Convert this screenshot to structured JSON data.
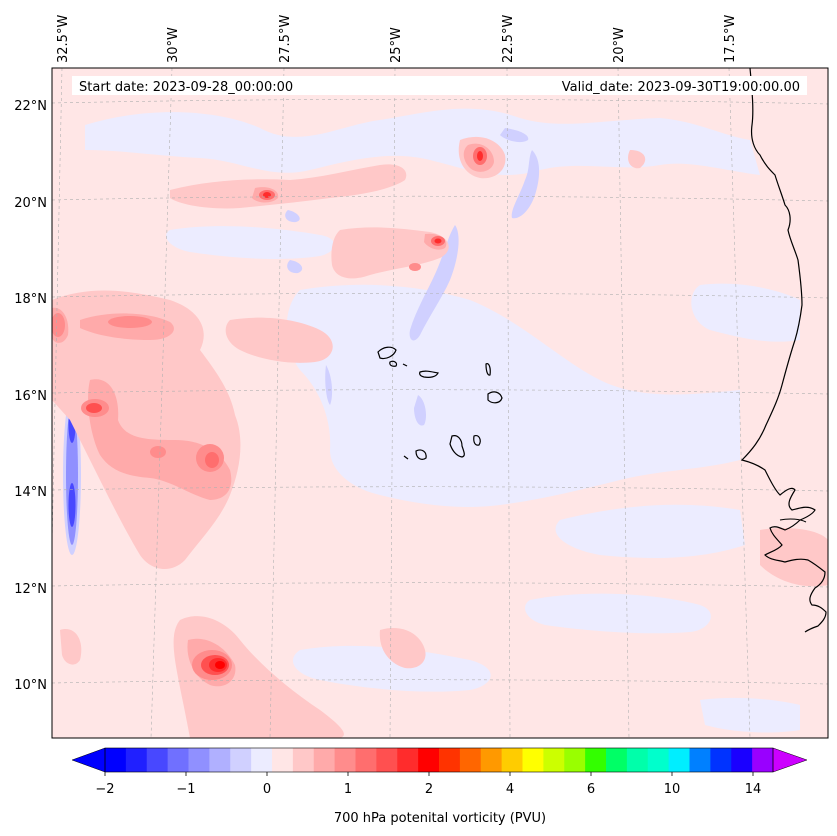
{
  "map": {
    "header": {
      "start_date": "Start date: 2023-09-28_00:00:00",
      "valid_date": "Valid_date: 2023-09-30T19:00:00.00"
    },
    "lon_labels": [
      "32.5°W",
      "30°W",
      "27.5°W",
      "25°W",
      "22.5°W",
      "20°W",
      "17.5°W"
    ],
    "lat_labels": [
      "22°N",
      "20°N",
      "18°N",
      "16°N",
      "14°N",
      "12°N",
      "10°N"
    ],
    "field": "700 hPa potential vorticity",
    "background_color": "#ffe6e6",
    "islands": [
      "Santo Antão",
      "São Vicente",
      "Santa Luzia",
      "São Nicolau",
      "Sal",
      "Boa Vista",
      "Maio",
      "Santiago",
      "Fogo",
      "Brava"
    ]
  },
  "colorbar": {
    "label": "700 hPa potenital vorticity (PVU)",
    "tick_labels": [
      "−2",
      "−1",
      "0",
      "1",
      "2",
      "4",
      "6",
      "10",
      "14"
    ],
    "colors": [
      "#0000ff",
      "#2020ff",
      "#4848ff",
      "#7070ff",
      "#9090ff",
      "#b0b0ff",
      "#d0d0ff",
      "#ececff",
      "#ffe6e6",
      "#ffc8c8",
      "#ffaaaa",
      "#ff8c8c",
      "#ff6e6e",
      "#ff5050",
      "#ff2c2c",
      "#ff0000",
      "#ff3300",
      "#ff6600",
      "#ff9900",
      "#ffcc00",
      "#ffff00",
      "#ccff00",
      "#99ff00",
      "#33ff00",
      "#00ff66",
      "#00ffaa",
      "#00ffcc",
      "#00eeff",
      "#0080ff",
      "#0033ff",
      "#1a00ff",
      "#9900ff"
    ],
    "extend_low_color": "#0000ff",
    "extend_high_color": "#cc00ff"
  }
}
